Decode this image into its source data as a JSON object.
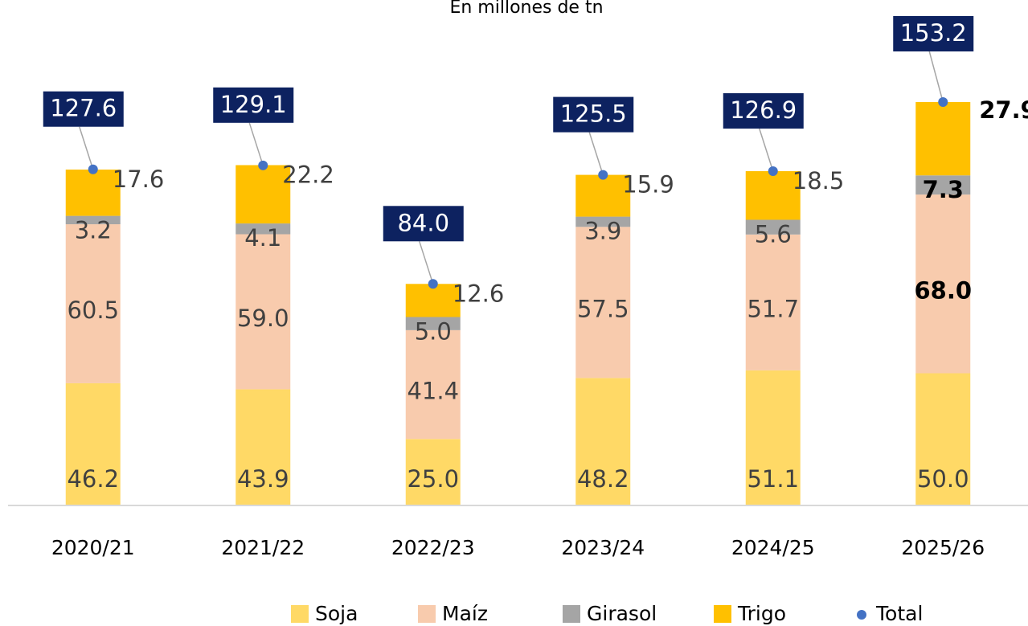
{
  "chart_data": {
    "type": "bar",
    "stacked": true,
    "subtitle": "En millones de tn",
    "categories": [
      "2020/21",
      "2021/22",
      "2022/23",
      "2023/24",
      "2024/25",
      "2025/26"
    ],
    "series": [
      {
        "name": "Soja",
        "color": "#ffd966",
        "values": [
          46.2,
          43.9,
          25.0,
          48.2,
          51.1,
          50.0
        ],
        "value_labels": [
          "46.2",
          "43.9",
          "25.0",
          "48.2",
          "51.1",
          "50.0"
        ]
      },
      {
        "name": "Maíz",
        "color": "#f8cbad",
        "values": [
          60.5,
          59.0,
          41.4,
          57.5,
          51.7,
          68.0
        ],
        "value_labels": [
          "60.5",
          "59.0",
          "41.4",
          "57.5",
          "51.7",
          "68.0"
        ]
      },
      {
        "name": "Girasol",
        "color": "#a5a5a5",
        "values": [
          3.2,
          4.1,
          5.0,
          3.9,
          5.6,
          7.3
        ],
        "value_labels": [
          "3.2",
          "4.1",
          "5.0",
          "3.9",
          "5.6",
          "7.3"
        ]
      },
      {
        "name": "Trigo",
        "color": "#ffc000",
        "values": [
          17.6,
          22.2,
          12.6,
          15.9,
          18.5,
          27.9
        ],
        "value_labels": [
          "17.6",
          "22.2",
          "12.6",
          "15.9",
          "18.5",
          "27.9"
        ]
      },
      {
        "name": "Total",
        "color": "#4472c4",
        "type": "scatter",
        "values": [
          127.6,
          129.1,
          84.0,
          125.5,
          126.9,
          153.2
        ],
        "value_labels": [
          "127.6",
          "129.1",
          "84.0",
          "125.5",
          "126.9",
          "153.2"
        ]
      }
    ],
    "total_label_color": "#0d2260",
    "legend": "bottom"
  }
}
